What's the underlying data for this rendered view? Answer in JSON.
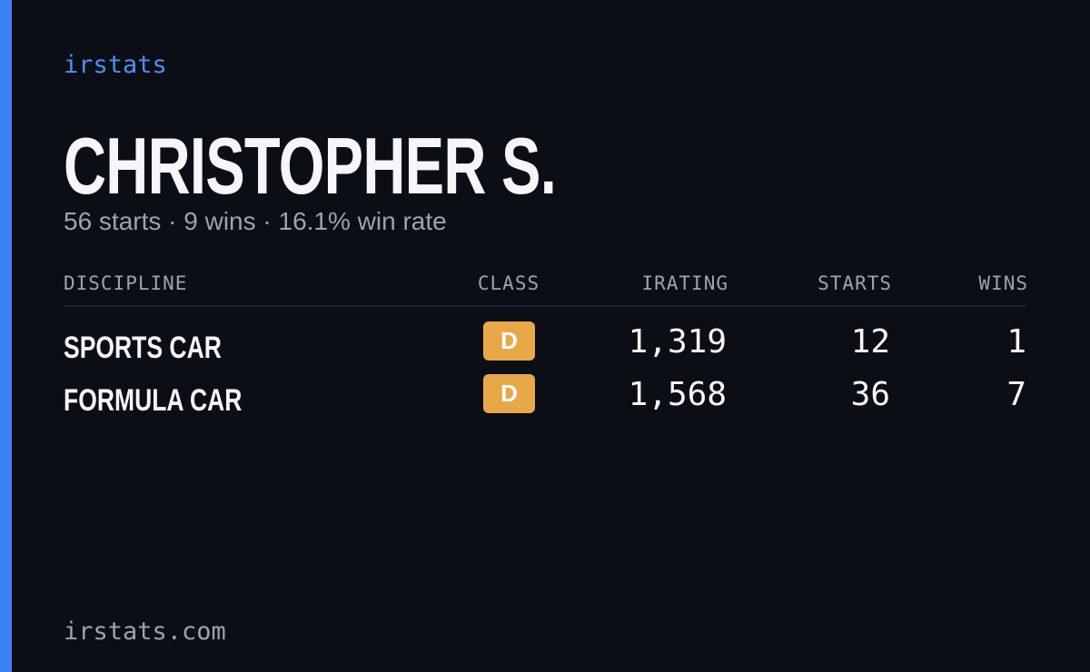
{
  "brand": "irstats",
  "profile": {
    "name": "CHRISTOPHER S.",
    "summary": "56 starts · 9 wins · 16.1% win rate"
  },
  "table": {
    "headers": [
      "DISCIPLINE",
      "CLASS",
      "IRATING",
      "STARTS",
      "WINS"
    ],
    "rows": [
      [
        "SPORTS CAR",
        "D",
        "1,319",
        "12",
        "1"
      ],
      [
        "FORMULA CAR",
        "D",
        "1,568",
        "36",
        "7"
      ]
    ]
  },
  "footer": "irstats.com"
}
